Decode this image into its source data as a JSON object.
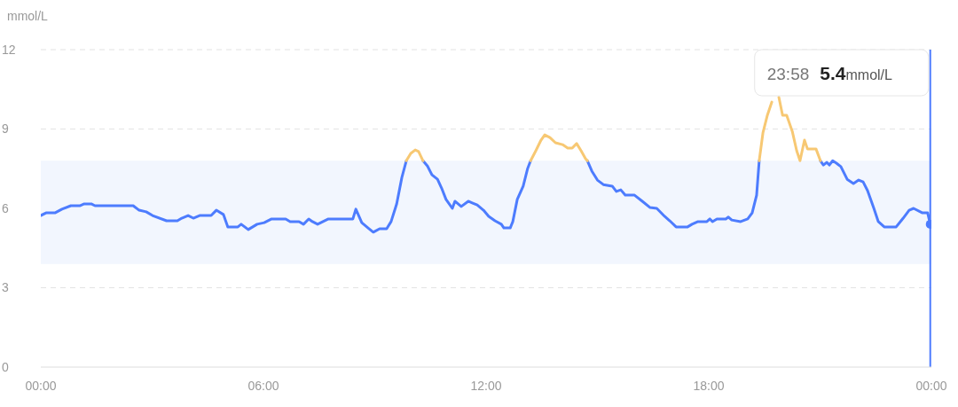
{
  "chart_data": {
    "type": "line",
    "ylabel": "mmol/L",
    "x": [
      0,
      0.14,
      0.38,
      0.57,
      0.81,
      1.05,
      1.17,
      1.36,
      1.46,
      2.49,
      2.65,
      2.84,
      3.01,
      3.39,
      3.68,
      3.8,
      3.97,
      4.11,
      4.28,
      4.59,
      4.73,
      4.92,
      5.04,
      5.31,
      5.4,
      5.59,
      5.71,
      5.83,
      6.02,
      6.22,
      6.6,
      6.72,
      6.96,
      7.08,
      7.22,
      7.32,
      7.46,
      7.75,
      8.41,
      8.49,
      8.65,
      8.82,
      8.96,
      9.13,
      9.32,
      9.44,
      9.59,
      9.73,
      9.85,
      9.97,
      10.09,
      10.18,
      10.3,
      10.42,
      10.54,
      10.69,
      10.8,
      10.92,
      11.09,
      11.16,
      11.33,
      11.52,
      11.64,
      11.76,
      11.93,
      12.07,
      12.24,
      12.41,
      12.48,
      12.65,
      12.72,
      12.84,
      13,
      13.12,
      13.2,
      13.34,
      13.48,
      13.58,
      13.72,
      13.87,
      14.06,
      14.2,
      14.32,
      14.44,
      14.56,
      14.68,
      14.73,
      14.85,
      15,
      15.16,
      15.4,
      15.51,
      15.63,
      15.75,
      16,
      16.21,
      16.42,
      16.6,
      16.81,
      16.95,
      17.12,
      17.43,
      17.55,
      17.71,
      17.95,
      18.03,
      18.1,
      18.22,
      18.46,
      18.53,
      18.62,
      18.86,
      19.05,
      19.17,
      19.29,
      19.36,
      19.46,
      19.58,
      19.7,
      19.77,
      19.89,
      19.99,
      20.1,
      20.25,
      20.37,
      20.46,
      20.58,
      20.66,
      20.89,
      21.01,
      21.09,
      21.18,
      21.25,
      21.34,
      21.44,
      21.56,
      21.73,
      21.9,
      22.04,
      22.16,
      22.28,
      22.45,
      22.57,
      22.73,
      23.05,
      23.24,
      23.4,
      23.52,
      23.76,
      23.9,
      23.97
    ],
    "series": [
      {
        "color": "#4d7cfe",
        "values": [
          5.73,
          5.83,
          5.83,
          5.97,
          6.1,
          6.1,
          6.17,
          6.17,
          6.1,
          6.1,
          5.93,
          5.87,
          5.73,
          5.53,
          5.53,
          5.63,
          5.73,
          5.63,
          5.73,
          5.73,
          5.93,
          5.77,
          5.3,
          5.3,
          5.4,
          5.2,
          5.3,
          5.4,
          5.46,
          5.6,
          5.6,
          5.5,
          5.5,
          5.4,
          5.6,
          5.5,
          5.4,
          5.6,
          5.6,
          5.97,
          5.46,
          5.26,
          5.1,
          5.23,
          5.23,
          5.5,
          6.17,
          7.17,
          7.8,
          null,
          null,
          null,
          7.8,
          7.6,
          7.27,
          7.1,
          6.77,
          6.34,
          6.0,
          6.27,
          6.07,
          6.27,
          6.2,
          6.13,
          5.93,
          5.7,
          5.53,
          5.4,
          5.26,
          5.26,
          5.5,
          6.34,
          6.84,
          7.51,
          7.8,
          null,
          null,
          null,
          null,
          null,
          null,
          null,
          null,
          null,
          null,
          null,
          7.8,
          7.41,
          7.07,
          6.9,
          6.84,
          6.64,
          6.7,
          6.5,
          6.5,
          6.27,
          6.03,
          6.0,
          5.7,
          5.53,
          5.3,
          5.3,
          5.4,
          5.5,
          5.5,
          5.6,
          5.5,
          5.6,
          5.6,
          5.67,
          5.56,
          5.5,
          5.6,
          5.83,
          6.5,
          7.8,
          null,
          null,
          null,
          null,
          null,
          null,
          null,
          null,
          null,
          null,
          null,
          null,
          null,
          7.8,
          7.64,
          7.74,
          7.64,
          7.8,
          7.71,
          7.58,
          7.1,
          6.94,
          7.07,
          7.0,
          6.67,
          6.0,
          5.5,
          5.3,
          5.3,
          5.63,
          5.93,
          6.0,
          5.83,
          5.83,
          5.4
        ]
      },
      {
        "color": "#f7c873",
        "values": [
          null,
          null,
          null,
          null,
          null,
          null,
          null,
          null,
          null,
          null,
          null,
          null,
          null,
          null,
          null,
          null,
          null,
          null,
          null,
          null,
          null,
          null,
          null,
          null,
          null,
          null,
          null,
          null,
          null,
          null,
          null,
          null,
          null,
          null,
          null,
          null,
          null,
          null,
          null,
          null,
          null,
          null,
          null,
          null,
          null,
          null,
          null,
          null,
          7.8,
          8.08,
          8.21,
          8.15,
          7.8,
          null,
          null,
          null,
          null,
          null,
          null,
          null,
          null,
          null,
          null,
          null,
          null,
          null,
          null,
          null,
          null,
          null,
          null,
          null,
          null,
          null,
          7.8,
          8.18,
          8.58,
          8.78,
          8.68,
          8.48,
          8.41,
          8.28,
          8.28,
          8.45,
          8.18,
          7.88,
          7.8,
          null,
          null,
          null,
          null,
          null,
          null,
          null,
          null,
          null,
          null,
          null,
          null,
          null,
          null,
          null,
          null,
          null,
          null,
          null,
          null,
          null,
          null,
          null,
          null,
          null,
          null,
          null,
          null,
          7.8,
          8.85,
          9.52,
          10.02,
          null,
          10.2,
          9.52,
          9.52,
          8.92,
          8.18,
          7.8,
          8.58,
          8.25,
          8.25,
          7.8,
          null,
          null,
          null,
          null,
          null,
          null,
          null,
          null,
          null,
          null,
          null,
          null,
          null,
          null,
          null,
          null,
          null,
          null,
          null,
          null,
          null
        ]
      }
    ],
    "xlim": [
      0,
      24
    ],
    "xticks": [
      {
        "value": 0,
        "label": "00:00"
      },
      {
        "value": 6,
        "label": "06:00"
      },
      {
        "value": 12,
        "label": "12:00"
      },
      {
        "value": 18,
        "label": "18:00"
      },
      {
        "value": 24,
        "label": "00:00"
      }
    ],
    "ylim": [
      0,
      12
    ],
    "yticks": [
      0,
      3,
      6,
      9,
      12
    ],
    "grid": "y",
    "marker": "none",
    "line_style": "solid",
    "bands": [
      {
        "axis": "y",
        "from": 3.9,
        "to": 7.8,
        "color": "#f2f6fe"
      }
    ],
    "ref_lines": [
      {
        "axis": "x",
        "value": 23.97,
        "color": "#4d7cfe"
      }
    ],
    "annotations": [
      "23:58 5.4mmol/L"
    ]
  }
}
